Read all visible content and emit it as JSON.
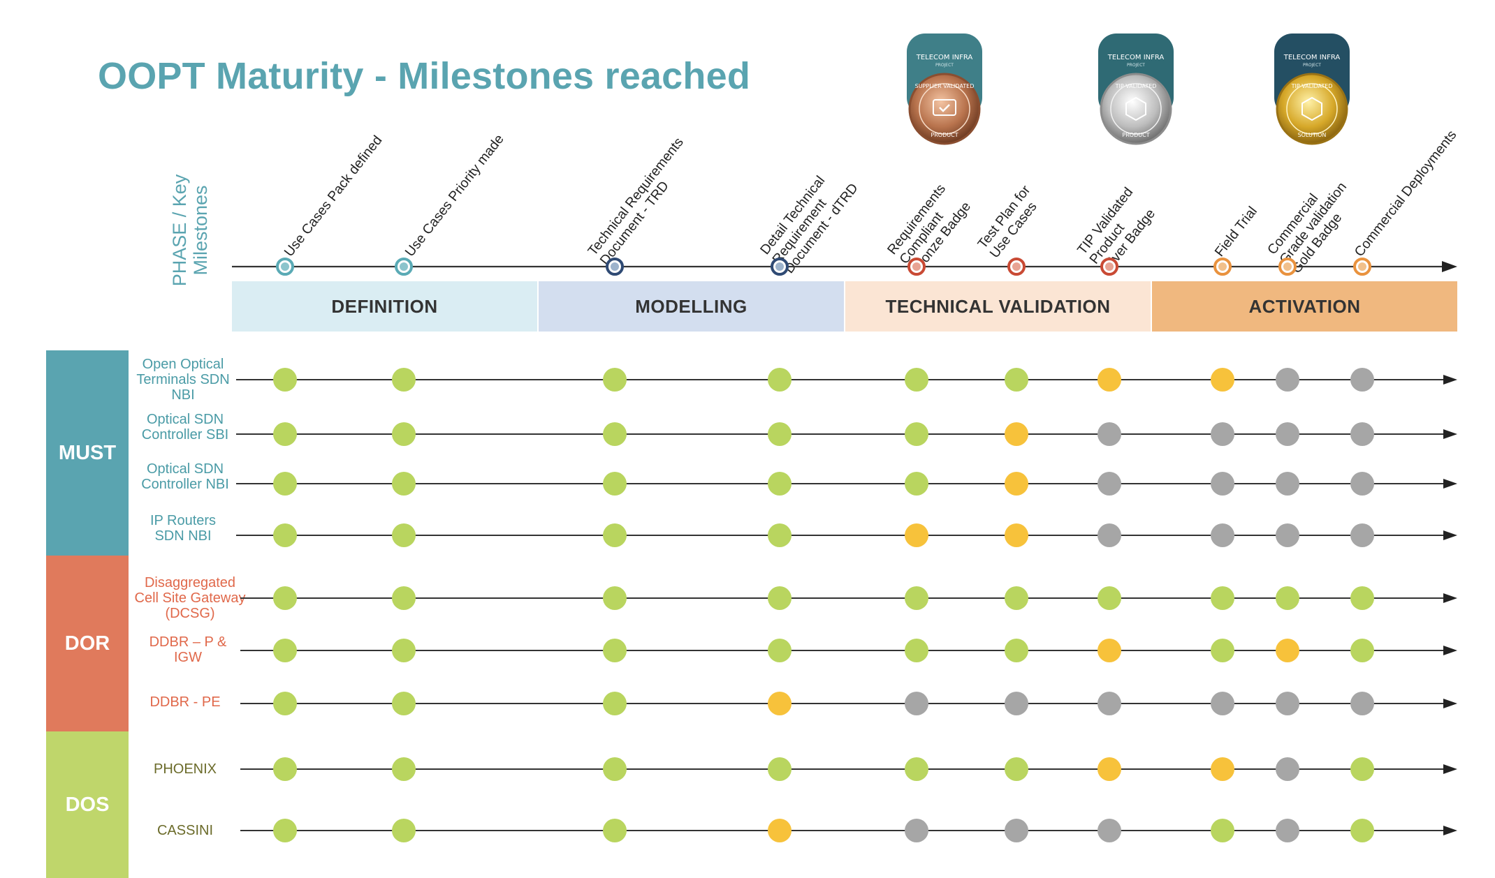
{
  "title": "OOPT Maturity - Milestones reached",
  "axis_label": [
    "PHASE / Key",
    "Milestones"
  ],
  "phases": [
    {
      "label": "DEFINITION",
      "color": "#daedf3"
    },
    {
      "label": "MODELLING",
      "color": "#d3deef"
    },
    {
      "label": "TECHNICAL VALIDATION",
      "color": "#fbe5d4"
    },
    {
      "label": "ACTIVATION",
      "color": "#f0b87f"
    }
  ],
  "milestones": [
    {
      "label": "Use Cases Pack defined",
      "marker": "#5aaab5"
    },
    {
      "label": "Use Cases Priority made",
      "marker": "#5aaab5"
    },
    {
      "label": "Technical Requirements\nDocument - TRD",
      "marker": "#2f4a74"
    },
    {
      "label": "Detail Technical\nRequirement\nDocument - dTRD",
      "marker": "#2f4a74"
    },
    {
      "label": "Requirements\nCompliant\nBronze Badge",
      "marker": "#c94a34"
    },
    {
      "label": "Test Plan for\nUse Cases",
      "marker": "#c94a34"
    },
    {
      "label": "TIP Validated\nProduct\nSilver Badge",
      "marker": "#c94a34"
    },
    {
      "label": "Field Trial",
      "marker": "#e9923e"
    },
    {
      "label": "Commercial\nGrade validation\nGold Badge",
      "marker": "#e9923e"
    },
    {
      "label": "Commercial Deployments",
      "marker": "#e9923e"
    }
  ],
  "badges": [
    {
      "org": "TELECOM INFRA",
      "sub": "PROJECT",
      "ring": "SUPPLIER VALIDATED",
      "kind": "PRODUCT",
      "metal": "bronze"
    },
    {
      "org": "TELECOM INFRA",
      "sub": "PROJECT",
      "ring": "TIP VALIDATED",
      "kind": "PRODUCT",
      "metal": "silver"
    },
    {
      "org": "TELECOM INFRA",
      "sub": "PROJECT",
      "ring": "TIP VALIDATED",
      "kind": "SOLUTION",
      "metal": "gold"
    }
  ],
  "status_colors": {
    "G": "#b9d55f",
    "Y": "#f7c23b",
    "X": "#a6a6a6"
  },
  "categories": [
    {
      "label": "MUST",
      "color": "#5aa4b0",
      "rows": [
        0,
        1,
        2,
        3
      ]
    },
    {
      "label": "DOR",
      "color": "#e07a5c",
      "rows": [
        4,
        5,
        6
      ]
    },
    {
      "label": "DOS",
      "color": "#bfd66b",
      "rows": [
        7,
        8
      ]
    }
  ],
  "rows": [
    {
      "label": "Open Optical Terminals SDN NBI",
      "cat": "blue",
      "status": [
        "G",
        "G",
        "G",
        "G",
        "G",
        "G",
        "Y",
        "Y",
        "X",
        "X"
      ]
    },
    {
      "label": "Optical SDN Controller SBI",
      "cat": "blue",
      "status": [
        "G",
        "G",
        "G",
        "G",
        "G",
        "Y",
        "X",
        "X",
        "X",
        "X"
      ]
    },
    {
      "label": "Optical SDN Controller NBI",
      "cat": "blue",
      "status": [
        "G",
        "G",
        "G",
        "G",
        "G",
        "Y",
        "X",
        "X",
        "X",
        "X"
      ]
    },
    {
      "label": "IP Routers SDN NBI",
      "cat": "blue",
      "status": [
        "G",
        "G",
        "G",
        "G",
        "Y",
        "Y",
        "X",
        "X",
        "X",
        "X"
      ]
    },
    {
      "label": "Disaggregated Cell Site Gateway (DCSG)",
      "cat": "red",
      "status": [
        "G",
        "G",
        "G",
        "G",
        "G",
        "G",
        "G",
        "G",
        "G",
        "G"
      ]
    },
    {
      "label": "DDBR – P & IGW",
      "cat": "red",
      "status": [
        "G",
        "G",
        "G",
        "G",
        "G",
        "G",
        "Y",
        "G",
        "Y",
        "G"
      ]
    },
    {
      "label": "DDBR - PE",
      "cat": "red",
      "status": [
        "G",
        "G",
        "G",
        "Y",
        "X",
        "X",
        "X",
        "X",
        "X",
        "X"
      ]
    },
    {
      "label": "PHOENIX",
      "cat": "green",
      "status": [
        "G",
        "G",
        "G",
        "G",
        "G",
        "G",
        "Y",
        "Y",
        "X",
        "G"
      ]
    },
    {
      "label": "CASSINI",
      "cat": "green",
      "status": [
        "G",
        "G",
        "G",
        "Y",
        "X",
        "X",
        "X",
        "G",
        "X",
        "G"
      ]
    }
  ]
}
